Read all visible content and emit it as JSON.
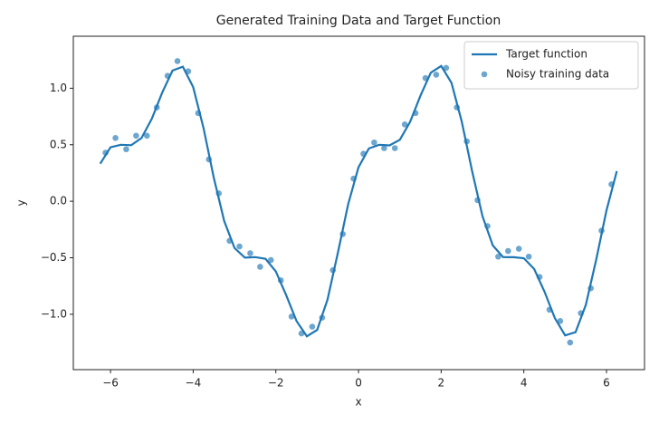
{
  "chart_data": {
    "type": "line",
    "title": "Generated Training Data and Target Function",
    "xlabel": "x",
    "ylabel": "y",
    "xlim": [
      -6.9,
      6.92
    ],
    "ylim": [
      -1.49,
      1.46
    ],
    "xticks": [
      {
        "value": -6,
        "label": "−6"
      },
      {
        "value": -4,
        "label": "−4"
      },
      {
        "value": -2,
        "label": "−2"
      },
      0,
      2,
      4,
      6
    ],
    "yticks": [
      {
        "value": -1.0,
        "label": "−1.0"
      },
      {
        "value": -0.5,
        "label": "−0.5"
      },
      {
        "value": 0.0,
        "label": "0.0"
      },
      0.5,
      {
        "value": 1.0,
        "label": "1.0"
      }
    ],
    "legend": "upper right",
    "series": [
      {
        "name": "Target function",
        "type": "line",
        "color": "#1f77b4",
        "x": [
          -6.25,
          -6.0,
          -5.75,
          -5.5,
          -5.25,
          -5.0,
          -4.75,
          -4.5,
          -4.25,
          -4.0,
          -3.75,
          -3.5,
          -3.25,
          -3.0,
          -2.75,
          -2.5,
          -2.25,
          -2.0,
          -1.75,
          -1.5,
          -1.25,
          -1.0,
          -0.75,
          -0.5,
          -0.25,
          0,
          0.25,
          0.5,
          0.75,
          1.0,
          1.25,
          1.5,
          1.75,
          2.0,
          2.25,
          2.5,
          2.75,
          3.0,
          3.25,
          3.5,
          3.75,
          4.0,
          4.25,
          4.5,
          4.75,
          5.0,
          5.25,
          5.5,
          5.75,
          6.0,
          6.25
        ],
        "values": [
          0.332,
          0.477,
          0.5,
          0.496,
          0.559,
          0.731,
          0.961,
          1.156,
          1.191,
          1.01,
          0.649,
          0.208,
          -0.175,
          -0.414,
          -0.499,
          -0.494,
          -0.51,
          -0.621,
          -0.83,
          -1.06,
          -1.195,
          -1.138,
          -0.87,
          -0.458,
          -0.027,
          0.3,
          0.467,
          0.5,
          0.494,
          0.544,
          0.703,
          0.934,
          1.138,
          1.197,
          1.046,
          0.702,
          0.265,
          -0.132,
          -0.391,
          -0.494,
          -0.495,
          -0.504,
          -0.599,
          -0.8,
          -1.033,
          -1.187,
          -1.159,
          -0.916,
          -0.518,
          -0.081,
          0.266
        ]
      },
      {
        "name": "Noisy training data",
        "type": "scatter",
        "color": "#1f77b4",
        "x": [
          -6.12,
          -5.88,
          -5.62,
          -5.38,
          -5.12,
          -4.88,
          -4.62,
          -4.38,
          -4.12,
          -3.88,
          -3.62,
          -3.38,
          -3.12,
          -2.88,
          -2.62,
          -2.38,
          -2.12,
          -1.88,
          -1.62,
          -1.38,
          -1.12,
          -0.88,
          -0.62,
          -0.38,
          -0.12,
          0.12,
          0.38,
          0.62,
          0.88,
          1.12,
          1.38,
          1.62,
          1.88,
          2.12,
          2.38,
          2.62,
          2.88,
          3.12,
          3.38,
          3.62,
          3.88,
          4.12,
          4.38,
          4.62,
          4.88,
          5.12,
          5.38,
          5.62,
          5.88,
          6.12
        ],
        "values": [
          0.43,
          0.56,
          0.46,
          0.58,
          0.58,
          0.83,
          1.11,
          1.24,
          1.15,
          0.78,
          0.37,
          0.07,
          -0.35,
          -0.4,
          -0.46,
          -0.58,
          -0.52,
          -0.7,
          -1.02,
          -1.17,
          -1.11,
          -1.03,
          -0.61,
          -0.29,
          0.2,
          0.42,
          0.52,
          0.47,
          0.47,
          0.68,
          0.78,
          1.09,
          1.12,
          1.18,
          0.83,
          0.53,
          0.01,
          -0.22,
          -0.49,
          -0.44,
          -0.42,
          -0.49,
          -0.67,
          -0.96,
          -1.06,
          -1.25,
          -0.99,
          -0.77,
          -0.26,
          0.15
        ]
      }
    ]
  }
}
